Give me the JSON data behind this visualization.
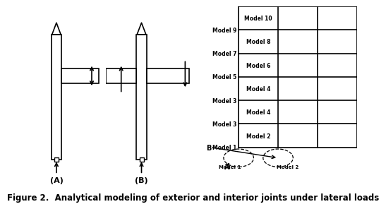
{
  "figure_title": "Figure 2.  Analytical modeling of exterior and interior joints under lateral loads",
  "title_fontsize": 8.5,
  "background_color": "#ffffff",
  "left_labels": [
    "Model 9",
    "Model 7",
    "Model 5",
    "Model 3",
    "Model 3",
    "Model 1"
  ],
  "inner_labels_col1": [
    "Model 10",
    "Model 8",
    "Model 6",
    "Model 4",
    "Model 4",
    "Model 2"
  ],
  "circle_labels": [
    "Model 1",
    "Model 2"
  ],
  "joint_A_label": "(A)",
  "joint_B_label": "(B)"
}
